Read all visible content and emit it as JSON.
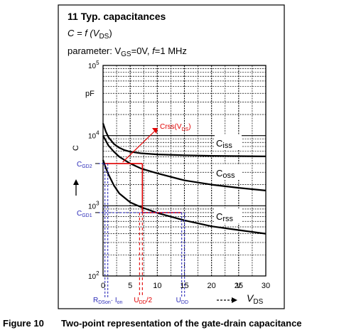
{
  "chart_data": {
    "type": "line",
    "title": "11 Typ. capacitances",
    "formula": {
      "lhs": "C = f (V",
      "sub": "DS",
      "rhs": ")"
    },
    "parameter": {
      "pre": "parameter: V",
      "sub": "GS",
      "mid": "=0V, ",
      "f": "f",
      "post": "=1 MHz"
    },
    "xlabel": {
      "main": "V",
      "sub": "DS",
      "arrow": "→"
    },
    "ylabel": "C",
    "y_unit": "pF",
    "x_unit": "V",
    "x_scale": "linear",
    "y_scale": "log",
    "xlim": [
      0,
      30
    ],
    "ylim": [
      100,
      100000
    ],
    "grid": true,
    "x_ticks": [
      0,
      5,
      10,
      15,
      20,
      25,
      30
    ],
    "y_ticks": [
      {
        "value": 100,
        "base": "10",
        "exp": "2"
      },
      {
        "value": 1000,
        "base": "10",
        "exp": "3"
      },
      {
        "value": 10000,
        "base": "10",
        "exp": "4"
      },
      {
        "value": 100000,
        "base": "10",
        "exp": "5"
      }
    ],
    "series": [
      {
        "name": "Ciss",
        "label_main": "C",
        "label_sub": "iss",
        "x": [
          0,
          0.5,
          1,
          2,
          3,
          4,
          5,
          7,
          10,
          15,
          20,
          25,
          30
        ],
        "y": [
          15000,
          11500,
          9500,
          7600,
          6700,
          6200,
          5900,
          5600,
          5400,
          5250,
          5150,
          5100,
          5050
        ]
      },
      {
        "name": "Coss",
        "label_main": "C",
        "label_sub": "oss",
        "x": [
          0,
          0.5,
          1,
          2,
          3,
          5,
          7,
          10,
          15,
          20,
          25,
          30
        ],
        "y": [
          10000,
          8500,
          7200,
          5900,
          5000,
          4000,
          3400,
          2900,
          2300,
          2000,
          1800,
          1650
        ]
      },
      {
        "name": "Crss",
        "label_main": "C",
        "label_sub": "rss",
        "x": [
          0,
          0.5,
          1,
          2,
          3,
          5,
          7,
          10,
          15,
          20,
          25,
          30
        ],
        "y": [
          4500,
          3500,
          2800,
          1950,
          1500,
          1120,
          960,
          790,
          620,
          510,
          450,
          400
        ]
      }
    ],
    "annotations": {
      "crss_vds": {
        "text": "Crss(V",
        "sub": "DS",
        "end": ")"
      },
      "cgd2": {
        "main": "C",
        "sub": "GD2",
        "y": 4000
      },
      "cgd1": {
        "main": "C",
        "sub": "GD1",
        "y": 800
      },
      "rdson_ion": {
        "main1": "R",
        "sub1": "DSon",
        "mid": "· I",
        "sub2": "on",
        "x": 0.35
      },
      "udd_half": {
        "main": "U",
        "sub": "DD",
        "post": "/2",
        "x": 7.25
      },
      "udd": {
        "main": "U",
        "sub": "DD",
        "x": 14.5
      }
    }
  },
  "caption": {
    "number": "Figure 10",
    "text": "Two-point representation of the gate-drain capacitance"
  },
  "colors": {
    "red": "#e00000",
    "blue": "#2b2bb8",
    "frame": "#000000",
    "grid": "#000000"
  }
}
